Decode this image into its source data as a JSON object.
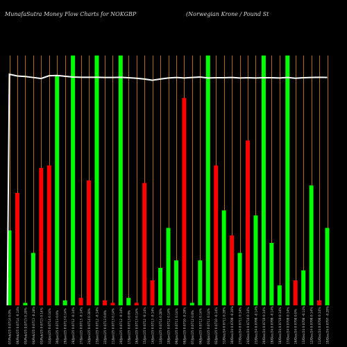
{
  "header": {
    "left": "MunafaSutra  Money Flow  Charts for NOKGBP",
    "right": "(Norwegian  Krone   / Pound St"
  },
  "colors": {
    "background": "#000000",
    "up": "#00ff00",
    "down": "#ff0000",
    "vline": "#b86e00",
    "line": "#ffffff",
    "label": "#c8c8c8"
  },
  "chart_data": {
    "type": "bar",
    "categories": [
      "07/Feb/25 0.0714 0.0%",
      "06/Feb/25 0.0714 -0.14%",
      "05/Feb/25 0.0715 0.28%",
      "04/Feb/25 0.0713 -0.28%",
      "03/Feb/25 0.0715 0.14%",
      "31/Jan/25 0.0714 0.14%",
      "30/Jan/25 0.0713 0.0%",
      "29/Jan/25 0.0713 0.14%",
      "28/Jan/25 0.0712 -0.14%",
      "27/Jan/25 0.0713 -0.14%",
      "24/Jan/25 0.0714 0.28%",
      "23/Jan/25 0.0712 -0.14%",
      "22/Jan/25 0.0713 0.0%",
      "21/Jan/25 0.0713 0.14%",
      "20/Jan/25 0.0712 -0.14%",
      "17/Jan/25 0.0713 0.0%",
      "16/Jan/25 0.0713 0.14%",
      "15/Jan/25 0.0712 -0.14%",
      "14/Jan/25 0.0713 -0.14%",
      "13/Jan/25 0.0714 0.28%",
      "10/Jan/25 0.0712 0.14%",
      "09/Jan/25 0.0711 0.14%",
      "08/Jan/25 0.0710 -0.28%",
      "07/Jan/25 0.0712 0.0%",
      "06/Jan/25 0.0712 0.14%",
      "03/Jan/25 0.0711 0.14%",
      "02/Jan/25 0.0710 -0.14%",
      "31/Dec/24 0.0711 0.28%",
      "30/Dec/24 0.0709 -0.28%",
      "27/Dec/24 0.0711 0.14%",
      "24/Dec/24 0.0710 0.14%",
      "23/Dec/24 0.0709 -0.14%",
      "20/Dec/24 0.0710 0.14%",
      "19/Dec/24 0.0709 -0.14%",
      "18/Dec/24 0.0710 0.14%",
      "17/Dec/24 0.0709 0.14%",
      "16/Dec/24 0.0708 0.0%",
      "13/Dec/24 0.0708 -0.14%",
      "12/Dec/24 0.0709 0.14%",
      "11/Dec/24 0.0708 0.14%",
      "10/Dec/24 0.0707 -0.28%",
      "09/Dec/24 0.0709 0.14%",
      "06/Dec/24 0.0708 0.28%",
      "05/Dec/24 0.0706 0.14%",
      "04/Dec/24 0.0705 -0.14%",
      "03/Dec/24 0.0706 -0.28%",
      "02/Dec/24 0.0708 0.14%",
      "29/Nov/24 0.0707 -0.14%",
      "28/Nov/24 0.0708 0.28%",
      "27/Nov/24 0.0706 0.14%",
      "26/Nov/24 0.0705 -0.14%",
      "25/Nov/24 0.0706 0.0%",
      "22/Nov/24 0.0706 0.14%"
    ],
    "bar_values": [
      30,
      45,
      1,
      21,
      55,
      56,
      92,
      2,
      100,
      3,
      50,
      100,
      2,
      1,
      100,
      3,
      1,
      49,
      10,
      15,
      31,
      18,
      83,
      1,
      18,
      100,
      56,
      38,
      28,
      21,
      66,
      36,
      100,
      25,
      8,
      100,
      10,
      14,
      48,
      2,
      31
    ],
    "bar_colors": [
      "up",
      "down",
      "up",
      "up",
      "down",
      "down",
      "up",
      "up",
      "up",
      "down",
      "down",
      "up",
      "down",
      "down",
      "up",
      "up",
      "down",
      "down",
      "down",
      "up",
      "up",
      "up",
      "down",
      "up",
      "up",
      "up",
      "down",
      "up",
      "down",
      "up",
      "down",
      "up",
      "up",
      "up",
      "up",
      "up",
      "down",
      "up",
      "up",
      "down",
      "up"
    ],
    "line_values": [
      92.5,
      91.8,
      91.6,
      91.2,
      90.8,
      91.9,
      92.0,
      91.7,
      91.4,
      91.3,
      91.3,
      91.3,
      91.2,
      91.2,
      91.3,
      91.1,
      90.9,
      90.6,
      90.1,
      90.6,
      91.0,
      91.2,
      91.0,
      91.2,
      91.4,
      91.0,
      91.1,
      91.1,
      91.2,
      91.0,
      91.1,
      91.0,
      91.1,
      91.1,
      91.0,
      91.2,
      90.9,
      91.1,
      91.2,
      91.3,
      91.2
    ],
    "line_start": 0,
    "ylim": [
      0,
      100
    ]
  }
}
